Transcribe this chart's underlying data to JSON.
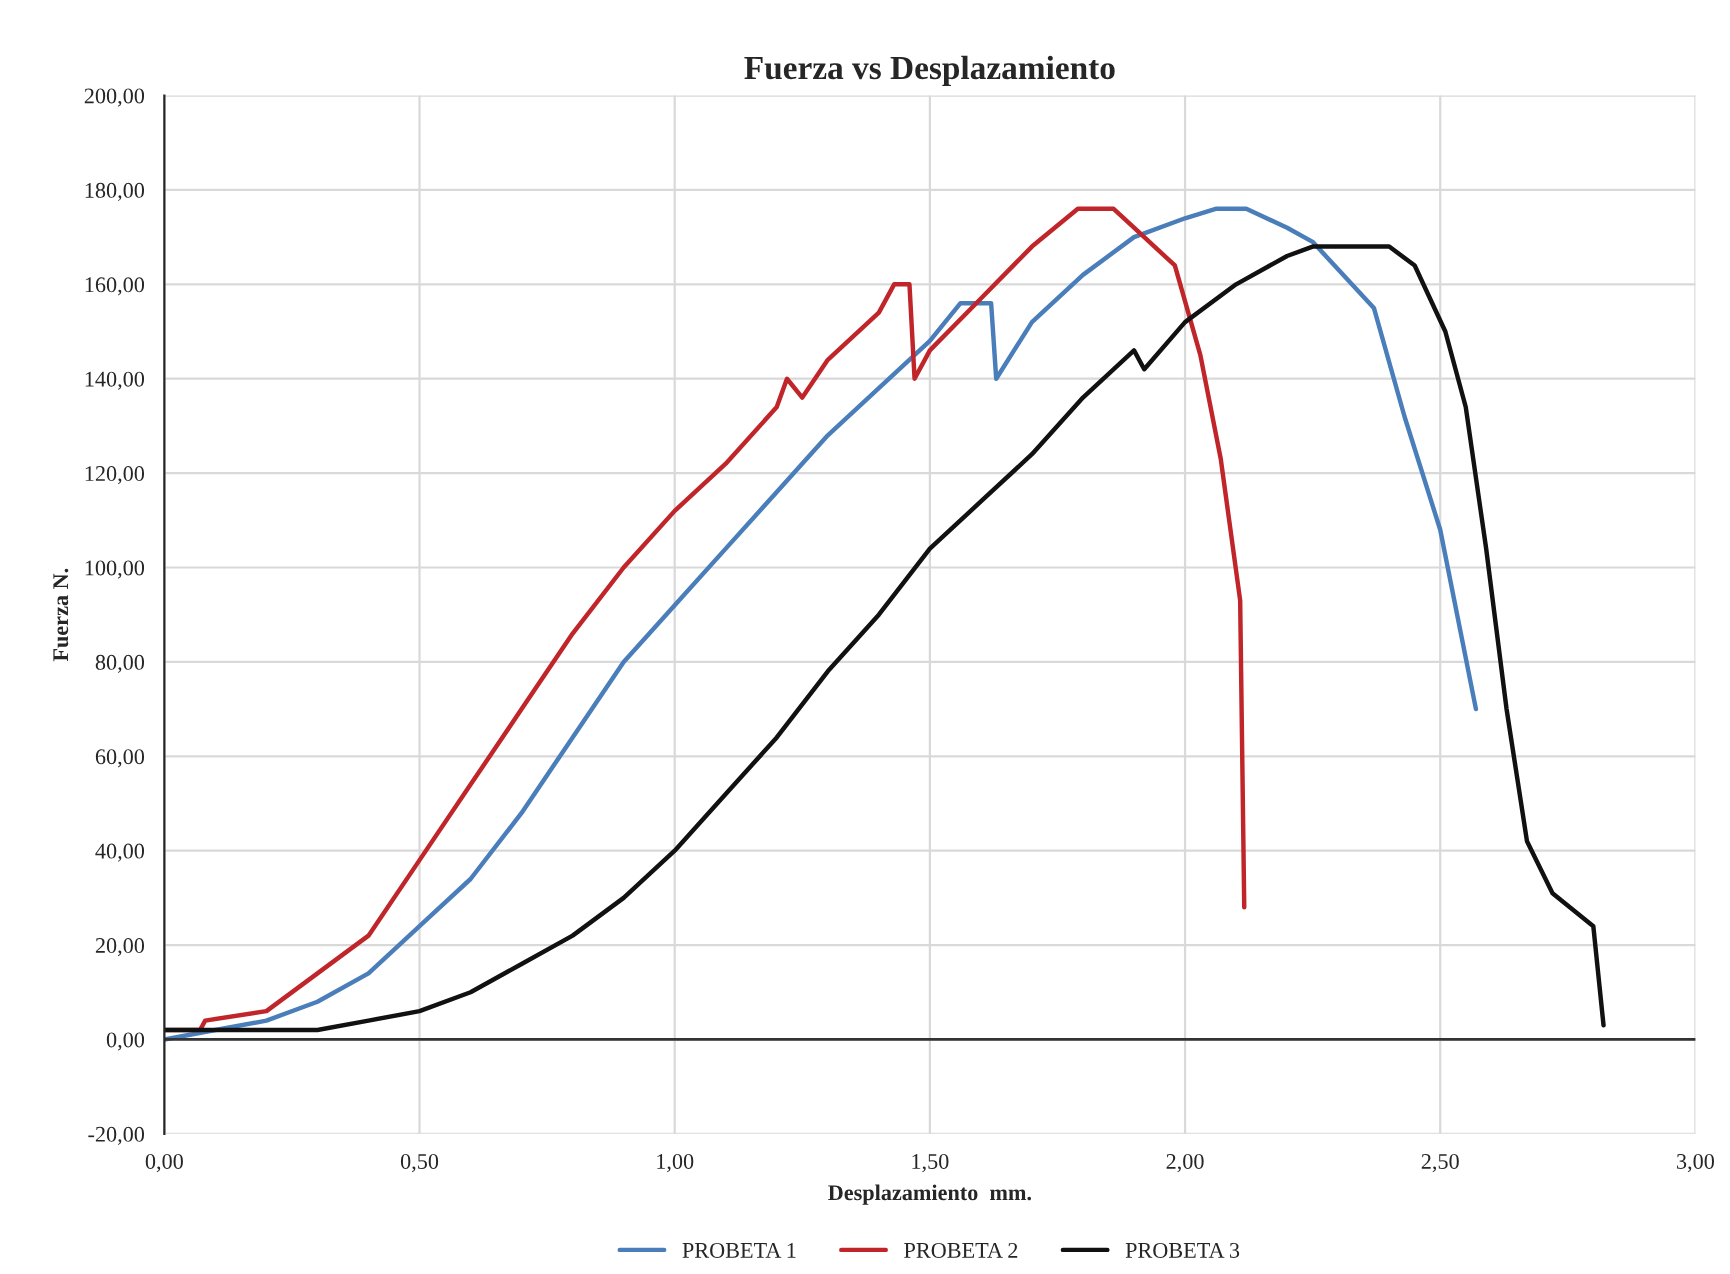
{
  "chart_data": {
    "type": "line",
    "title": "Fuerza vs Desplazamiento",
    "xlabel": "Desplazamiento  mm.",
    "ylabel": "Fuerza N.",
    "xlim": [
      0,
      3
    ],
    "ylim": [
      -20,
      200
    ],
    "xticks": [
      {
        "value": 0,
        "label": "0,00"
      },
      {
        "value": 0.5,
        "label": "0,50"
      },
      {
        "value": 1,
        "label": "1,00"
      },
      {
        "value": 1.5,
        "label": "1,50"
      },
      {
        "value": 2,
        "label": "2,00"
      },
      {
        "value": 2.5,
        "label": "2,50"
      },
      {
        "value": 3,
        "label": "3,00"
      }
    ],
    "yticks": [
      {
        "value": -20,
        "label": "-20,00"
      },
      {
        "value": 0,
        "label": "0,00"
      },
      {
        "value": 20,
        "label": "20,00"
      },
      {
        "value": 40,
        "label": "40,00"
      },
      {
        "value": 60,
        "label": "60,00"
      },
      {
        "value": 80,
        "label": "80,00"
      },
      {
        "value": 100,
        "label": "100,00"
      },
      {
        "value": 120,
        "label": "120,00"
      },
      {
        "value": 140,
        "label": "140,00"
      },
      {
        "value": 160,
        "label": "160,00"
      },
      {
        "value": 180,
        "label": "180,00"
      },
      {
        "value": 200,
        "label": "200,00"
      }
    ],
    "grid": true,
    "legend": "bottom",
    "marker": "none",
    "line_style": "solid",
    "series": [
      {
        "name": "PROBETA 1",
        "color": "#4a7ebb",
        "x": [
          0,
          0.1,
          0.2,
          0.3,
          0.4,
          0.5,
          0.6,
          0.7,
          0.8,
          0.9,
          1.0,
          1.1,
          1.2,
          1.3,
          1.4,
          1.5,
          1.56,
          1.62,
          1.63,
          1.7,
          1.8,
          1.9,
          2.0,
          2.06,
          2.12,
          2.2,
          2.25,
          2.37,
          2.43,
          2.5,
          2.57
        ],
        "values": [
          0,
          2,
          4,
          8,
          14,
          24,
          34,
          48,
          64,
          80,
          92,
          104,
          116,
          128,
          138,
          148,
          156,
          156,
          140,
          152,
          162,
          170,
          174,
          176,
          176,
          172,
          169,
          155,
          132,
          108,
          70
        ]
      },
      {
        "name": "PROBETA 2",
        "color": "#c0252a",
        "x": [
          0,
          0.07,
          0.08,
          0.2,
          0.3,
          0.4,
          0.5,
          0.6,
          0.7,
          0.8,
          0.9,
          1.0,
          1.1,
          1.2,
          1.22,
          1.25,
          1.3,
          1.4,
          1.43,
          1.46,
          1.47,
          1.5,
          1.6,
          1.7,
          1.79,
          1.86,
          1.9,
          1.98,
          2.03,
          2.07,
          2.108,
          2.116
        ],
        "values": [
          2,
          2,
          4,
          6,
          14,
          22,
          38,
          54,
          70,
          86,
          100,
          112,
          122,
          134,
          140,
          136,
          144,
          154,
          160,
          160,
          140,
          146,
          157,
          168,
          176,
          176,
          172,
          164,
          145,
          123,
          93,
          28
        ]
      },
      {
        "name": "PROBETA 3",
        "color": "#111111",
        "x": [
          0,
          0.3,
          0.4,
          0.5,
          0.6,
          0.7,
          0.8,
          0.9,
          1.0,
          1.1,
          1.2,
          1.3,
          1.4,
          1.5,
          1.6,
          1.7,
          1.8,
          1.9,
          1.92,
          2.0,
          2.1,
          2.2,
          2.25,
          2.4,
          2.45,
          2.51,
          2.55,
          2.59,
          2.63,
          2.67,
          2.72,
          2.8,
          2.82
        ],
        "values": [
          2,
          2,
          4,
          6,
          10,
          16,
          22,
          30,
          40,
          52,
          64,
          78,
          90,
          104,
          114,
          124,
          136,
          146,
          142,
          152,
          160,
          166,
          168,
          168,
          164,
          150,
          134,
          104,
          70,
          42,
          31,
          24,
          3
        ]
      }
    ]
  }
}
